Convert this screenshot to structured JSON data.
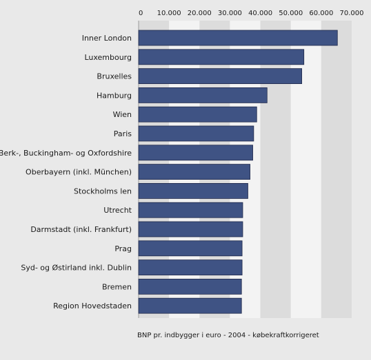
{
  "chart_data": {
    "type": "bar",
    "orientation": "horizontal",
    "categories": [
      "Inner London",
      "Luxembourg",
      "Bruxelles",
      "Hamburg",
      "Wien",
      "Paris",
      "Berk-, Buckingham- og Oxfordshire",
      "Oberbayern (inkl. München)",
      "Stockholms len",
      "Utrecht",
      "Darmstadt (inkl. Frankfurt)",
      "Prag",
      "Syd- og Østirland inkl. Dublin",
      "Bremen",
      "Region Hovedstaden"
    ],
    "values": [
      65300,
      54300,
      53600,
      42200,
      38800,
      37800,
      37500,
      36600,
      35900,
      34200,
      34200,
      34000,
      34000,
      33800,
      33800
    ],
    "xlim": [
      0,
      70000
    ],
    "xticks": [
      0,
      10000,
      20000,
      30000,
      40000,
      50000,
      60000,
      70000
    ],
    "xtick_labels": [
      "0",
      "10.000",
      "20.000",
      "30.000",
      "40.000",
      "50.000",
      "60.000",
      "70.000"
    ],
    "xlabel": "BNP pr. indbygger i euro - 2004 - købekraftkorrigeret",
    "ylabel": "",
    "title": "",
    "x_axis_position": "top",
    "grid": "alternating vertical bands",
    "legend": "none",
    "colors": {
      "bar_fill": "#3f5384",
      "bar_stroke": "#20294a",
      "band_dark": "#dcdcdc",
      "band_light": "#f3f3f3",
      "page_background": "#e9e9e9"
    }
  }
}
